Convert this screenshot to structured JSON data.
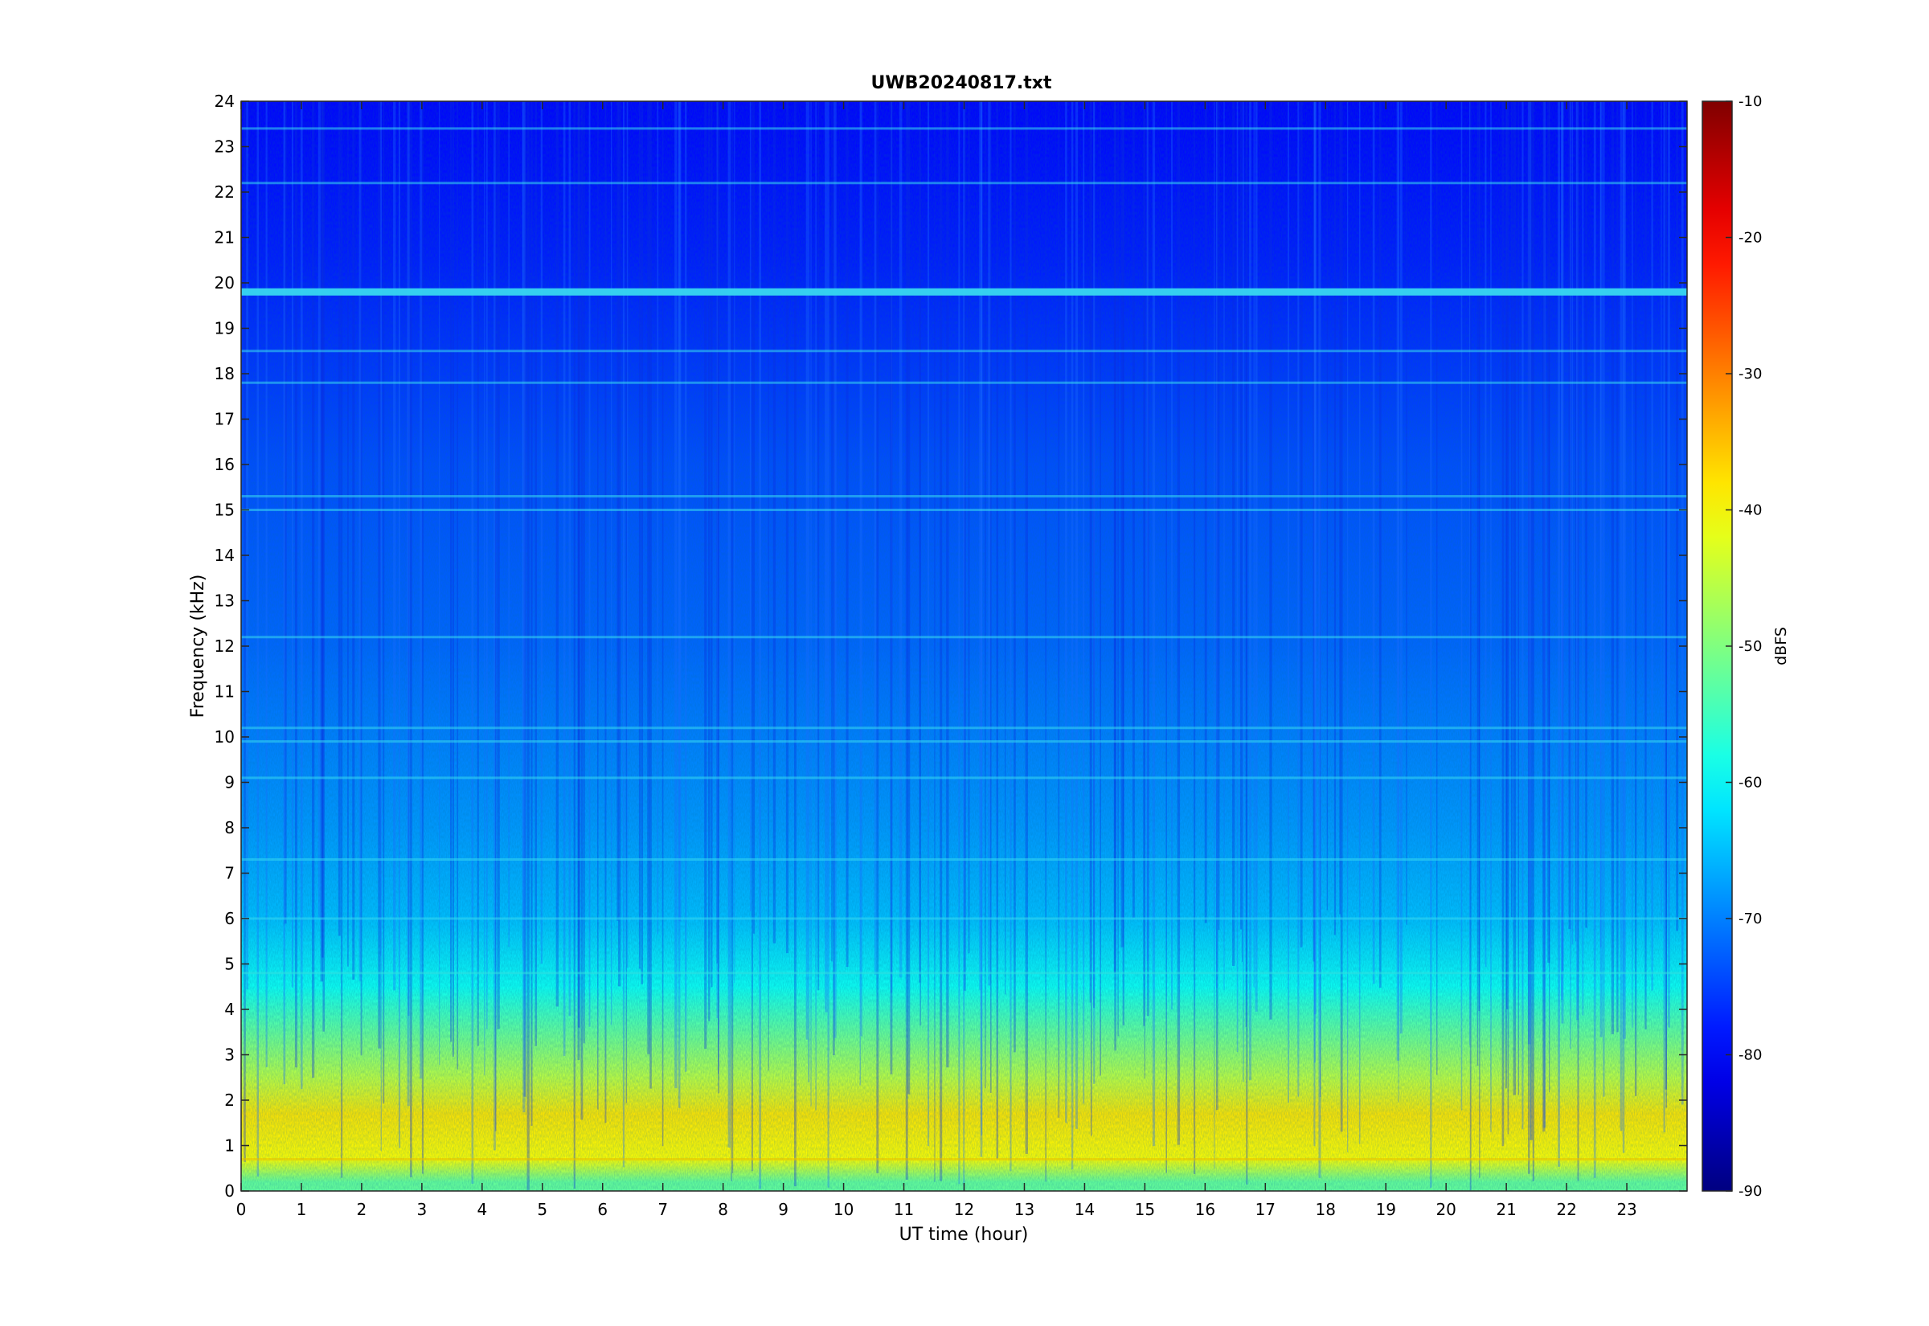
{
  "chart_data": {
    "type": "heatmap",
    "title": "UWB20240817.txt",
    "xlabel": "UT time (hour)",
    "ylabel": "Frequency (kHz)",
    "xlim": [
      0,
      24
    ],
    "ylim": [
      0,
      24
    ],
    "x_ticks": [
      0,
      1,
      2,
      3,
      4,
      5,
      6,
      7,
      8,
      9,
      10,
      11,
      12,
      13,
      14,
      15,
      16,
      17,
      18,
      19,
      20,
      21,
      22,
      23
    ],
    "y_ticks": [
      0,
      1,
      2,
      3,
      4,
      5,
      6,
      7,
      8,
      9,
      10,
      11,
      12,
      13,
      14,
      15,
      16,
      17,
      18,
      19,
      20,
      21,
      22,
      23,
      24
    ],
    "colorbar": {
      "label": "dBFS",
      "range": [
        -90,
        -10
      ],
      "ticks": [
        -90,
        -80,
        -70,
        -60,
        -50,
        -40,
        -30,
        -20,
        -10
      ],
      "colormap": "jet"
    },
    "intensity_profile_dBFS": [
      {
        "freq_khz": 0.2,
        "level": -52
      },
      {
        "freq_khz": 0.7,
        "level": -40
      },
      {
        "freq_khz": 1.7,
        "level": -38
      },
      {
        "freq_khz": 2.5,
        "level": -45
      },
      {
        "freq_khz": 3.5,
        "level": -52
      },
      {
        "freq_khz": 4.5,
        "level": -59
      },
      {
        "freq_khz": 6.0,
        "level": -65
      },
      {
        "freq_khz": 8.0,
        "level": -68
      },
      {
        "freq_khz": 12.0,
        "level": -72
      },
      {
        "freq_khz": 16.0,
        "level": -74
      },
      {
        "freq_khz": 20.5,
        "level": -78
      },
      {
        "freq_khz": 24.0,
        "level": -80
      }
    ],
    "persistent_lines_khz": [
      19.8,
      23.4,
      22.2,
      15.3,
      15.0,
      10.2,
      9.9,
      17.8,
      18.5,
      12.2,
      9.1,
      7.3,
      6.0,
      4.8,
      0.7
    ]
  }
}
